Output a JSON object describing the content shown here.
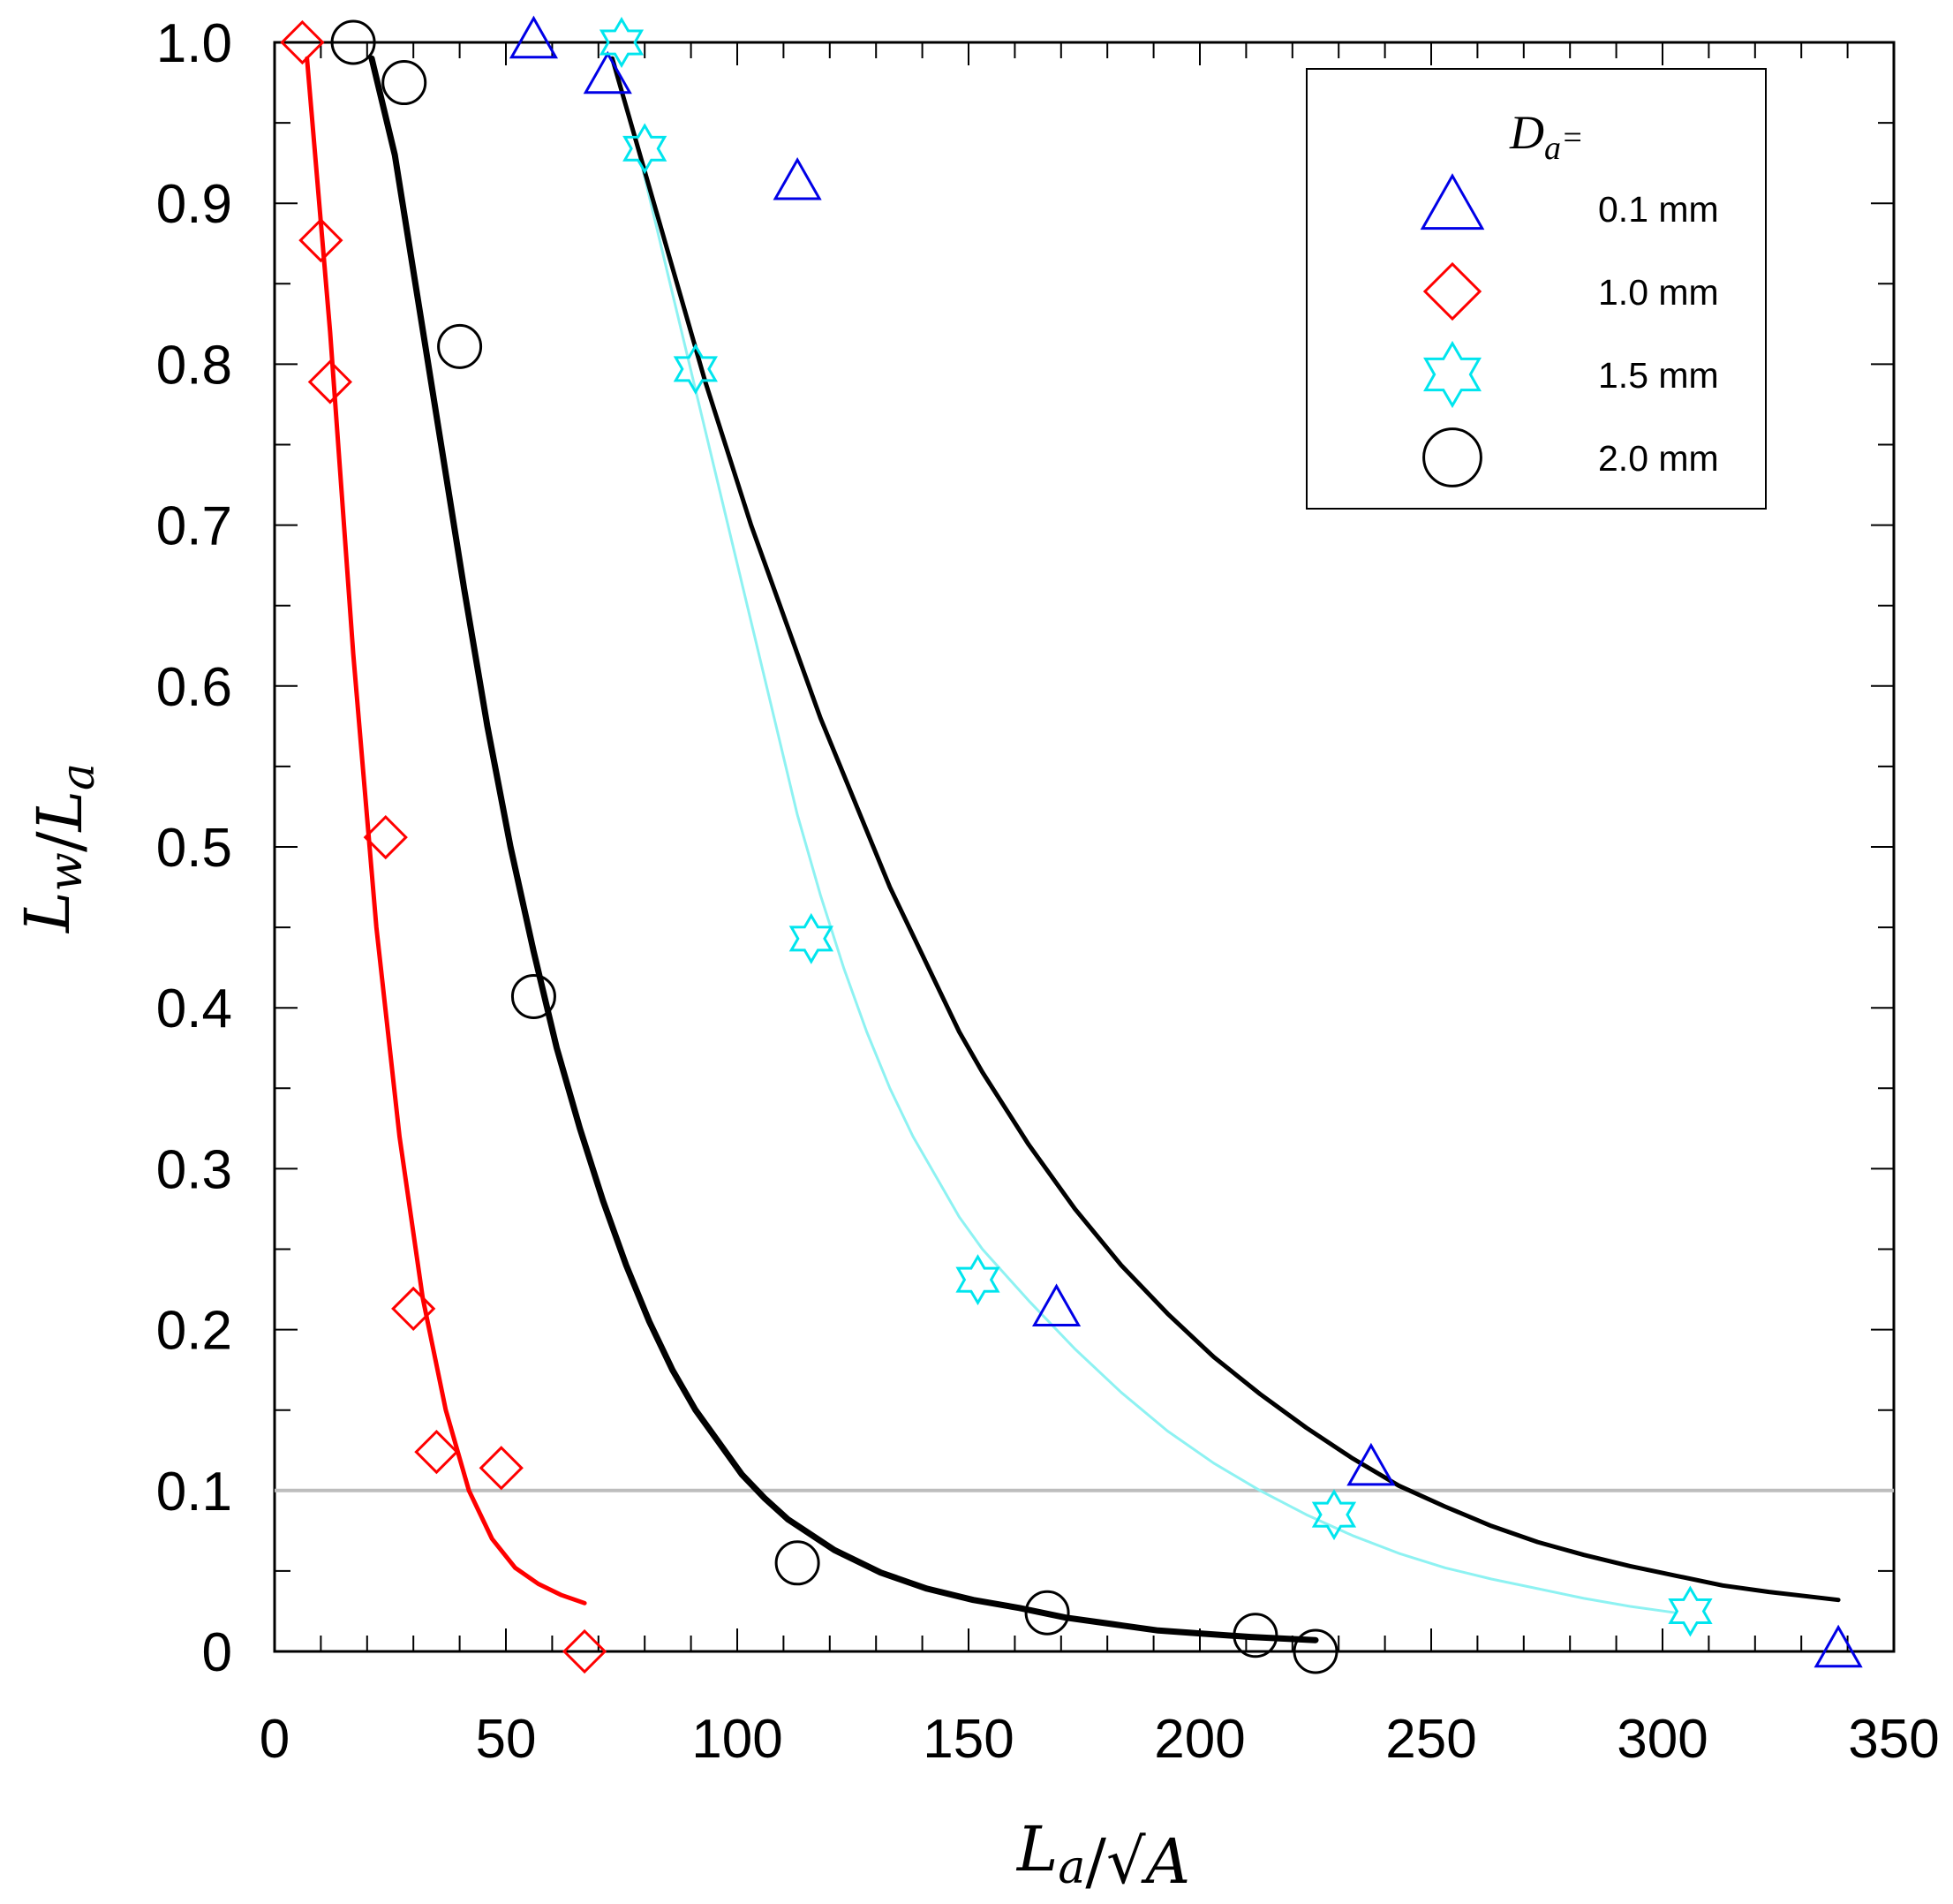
{
  "chart_data": {
    "type": "scatter",
    "title": "",
    "xlabel": "L_a/√A",
    "ylabel": "L_w/L_a",
    "xlim": [
      0,
      350
    ],
    "ylim": [
      0,
      1.0
    ],
    "x_ticks": [
      0,
      50,
      100,
      150,
      200,
      250,
      300,
      350
    ],
    "x_tick_labels": [
      "0",
      "50",
      "100",
      "150",
      "200",
      "250",
      "300",
      "350"
    ],
    "y_ticks": [
      0,
      0.1,
      0.2,
      0.3,
      0.4,
      0.5,
      0.6,
      0.7,
      0.8,
      0.9,
      1.0
    ],
    "y_tick_labels": [
      "0",
      "0.1",
      "0.2",
      "0.3",
      "0.4",
      "0.5",
      "0.6",
      "0.7",
      "0.8",
      "0.9",
      "1.0"
    ],
    "reference_line": {
      "y": 0.1,
      "color": "#bdbdbd"
    },
    "legend": {
      "title_symbol": "D",
      "title_subscript": "a",
      "title_suffix": "=",
      "position": "top-right"
    },
    "series": [
      {
        "name": "0.1 mm",
        "marker": "triangle",
        "color": "#0000e6",
        "points": [
          [
            56,
            1.0
          ],
          [
            72,
            0.978
          ],
          [
            113,
            0.912
          ],
          [
            169,
            0.212
          ],
          [
            237,
            0.113
          ],
          [
            338,
            0.0
          ]
        ]
      },
      {
        "name": "1.0 mm",
        "marker": "diamond",
        "color": "#ff0000",
        "points": [
          [
            6,
            1.0
          ],
          [
            10,
            0.877
          ],
          [
            12,
            0.789
          ],
          [
            24,
            0.506
          ],
          [
            30,
            0.213
          ],
          [
            35,
            0.124
          ],
          [
            49,
            0.114
          ],
          [
            67,
            0.0
          ]
        ]
      },
      {
        "name": "1.5 mm",
        "marker": "star",
        "color": "#00e5ee",
        "points": [
          [
            75,
            1.0
          ],
          [
            80,
            0.934
          ],
          [
            91,
            0.797
          ],
          [
            116,
            0.443
          ],
          [
            152,
            0.231
          ],
          [
            229,
            0.085
          ],
          [
            306,
            0.025
          ]
        ]
      },
      {
        "name": "2.0 mm",
        "marker": "circle",
        "color": "#000000",
        "points": [
          [
            17,
            1.0
          ],
          [
            28,
            0.975
          ],
          [
            40,
            0.811
          ],
          [
            56,
            0.407
          ],
          [
            113,
            0.055
          ],
          [
            167,
            0.024
          ],
          [
            212,
            0.01
          ],
          [
            225,
            0.0
          ]
        ]
      }
    ],
    "fit_curves": [
      {
        "name": "1.0 mm fit",
        "color": "#ff0000",
        "stroke": 5,
        "points": [
          [
            7,
            0.99
          ],
          [
            12,
            0.82
          ],
          [
            17,
            0.62
          ],
          [
            22,
            0.45
          ],
          [
            27,
            0.32
          ],
          [
            32,
            0.22
          ],
          [
            37,
            0.15
          ],
          [
            42,
            0.1
          ],
          [
            47,
            0.07
          ],
          [
            52,
            0.052
          ],
          [
            57,
            0.042
          ],
          [
            62,
            0.035
          ],
          [
            67,
            0.03
          ]
        ]
      },
      {
        "name": "2.0 mm fit",
        "color": "#000000",
        "stroke": 7,
        "points": [
          [
            21,
            0.99
          ],
          [
            26,
            0.93
          ],
          [
            31,
            0.84
          ],
          [
            36,
            0.75
          ],
          [
            41,
            0.66
          ],
          [
            46,
            0.575
          ],
          [
            51,
            0.5
          ],
          [
            56,
            0.435
          ],
          [
            61,
            0.375
          ],
          [
            66,
            0.325
          ],
          [
            71,
            0.28
          ],
          [
            76,
            0.24
          ],
          [
            81,
            0.205
          ],
          [
            86,
            0.175
          ],
          [
            91,
            0.15
          ],
          [
            96,
            0.13
          ],
          [
            101,
            0.11
          ],
          [
            106,
            0.095
          ],
          [
            111,
            0.082
          ],
          [
            121,
            0.063
          ],
          [
            131,
            0.049
          ],
          [
            141,
            0.039
          ],
          [
            151,
            0.032
          ],
          [
            161,
            0.027
          ],
          [
            171,
            0.021
          ],
          [
            181,
            0.017
          ],
          [
            191,
            0.013
          ],
          [
            201,
            0.011
          ],
          [
            211,
            0.009
          ],
          [
            225,
            0.007
          ]
        ]
      },
      {
        "name": "1.5 mm fit",
        "color": "#8ef2f2",
        "stroke": 3,
        "points": [
          [
            73,
            0.99
          ],
          [
            78,
            0.94
          ],
          [
            83,
            0.88
          ],
          [
            88,
            0.82
          ],
          [
            93,
            0.76
          ],
          [
            98,
            0.7
          ],
          [
            103,
            0.64
          ],
          [
            108,
            0.58
          ],
          [
            113,
            0.52
          ],
          [
            118,
            0.47
          ],
          [
            123,
            0.425
          ],
          [
            128,
            0.385
          ],
          [
            133,
            0.35
          ],
          [
            138,
            0.32
          ],
          [
            143,
            0.295
          ],
          [
            148,
            0.27
          ],
          [
            153,
            0.25
          ],
          [
            163,
            0.218
          ],
          [
            173,
            0.188
          ],
          [
            183,
            0.161
          ],
          [
            193,
            0.137
          ],
          [
            203,
            0.117
          ],
          [
            213,
            0.1
          ],
          [
            223,
            0.085
          ],
          [
            233,
            0.072
          ],
          [
            243,
            0.061
          ],
          [
            253,
            0.052
          ],
          [
            263,
            0.045
          ],
          [
            273,
            0.039
          ],
          [
            283,
            0.033
          ],
          [
            293,
            0.028
          ],
          [
            303,
            0.024
          ]
        ]
      },
      {
        "name": "0.1 mm fit",
        "color": "#000000",
        "stroke": 5,
        "points": [
          [
            73,
            0.99
          ],
          [
            78,
            0.94
          ],
          [
            83,
            0.89
          ],
          [
            88,
            0.84
          ],
          [
            93,
            0.79
          ],
          [
            98,
            0.745
          ],
          [
            103,
            0.7
          ],
          [
            108,
            0.66
          ],
          [
            113,
            0.62
          ],
          [
            118,
            0.58
          ],
          [
            123,
            0.545
          ],
          [
            128,
            0.51
          ],
          [
            133,
            0.475
          ],
          [
            138,
            0.445
          ],
          [
            143,
            0.415
          ],
          [
            148,
            0.385
          ],
          [
            153,
            0.36
          ],
          [
            163,
            0.315
          ],
          [
            173,
            0.275
          ],
          [
            183,
            0.24
          ],
          [
            193,
            0.21
          ],
          [
            203,
            0.183
          ],
          [
            213,
            0.16
          ],
          [
            223,
            0.139
          ],
          [
            233,
            0.12
          ],
          [
            243,
            0.103
          ],
          [
            253,
            0.09
          ],
          [
            263,
            0.078
          ],
          [
            273,
            0.068
          ],
          [
            283,
            0.06
          ],
          [
            293,
            0.053
          ],
          [
            303,
            0.047
          ],
          [
            313,
            0.041
          ],
          [
            323,
            0.037
          ],
          [
            338,
            0.032
          ]
        ]
      }
    ]
  }
}
